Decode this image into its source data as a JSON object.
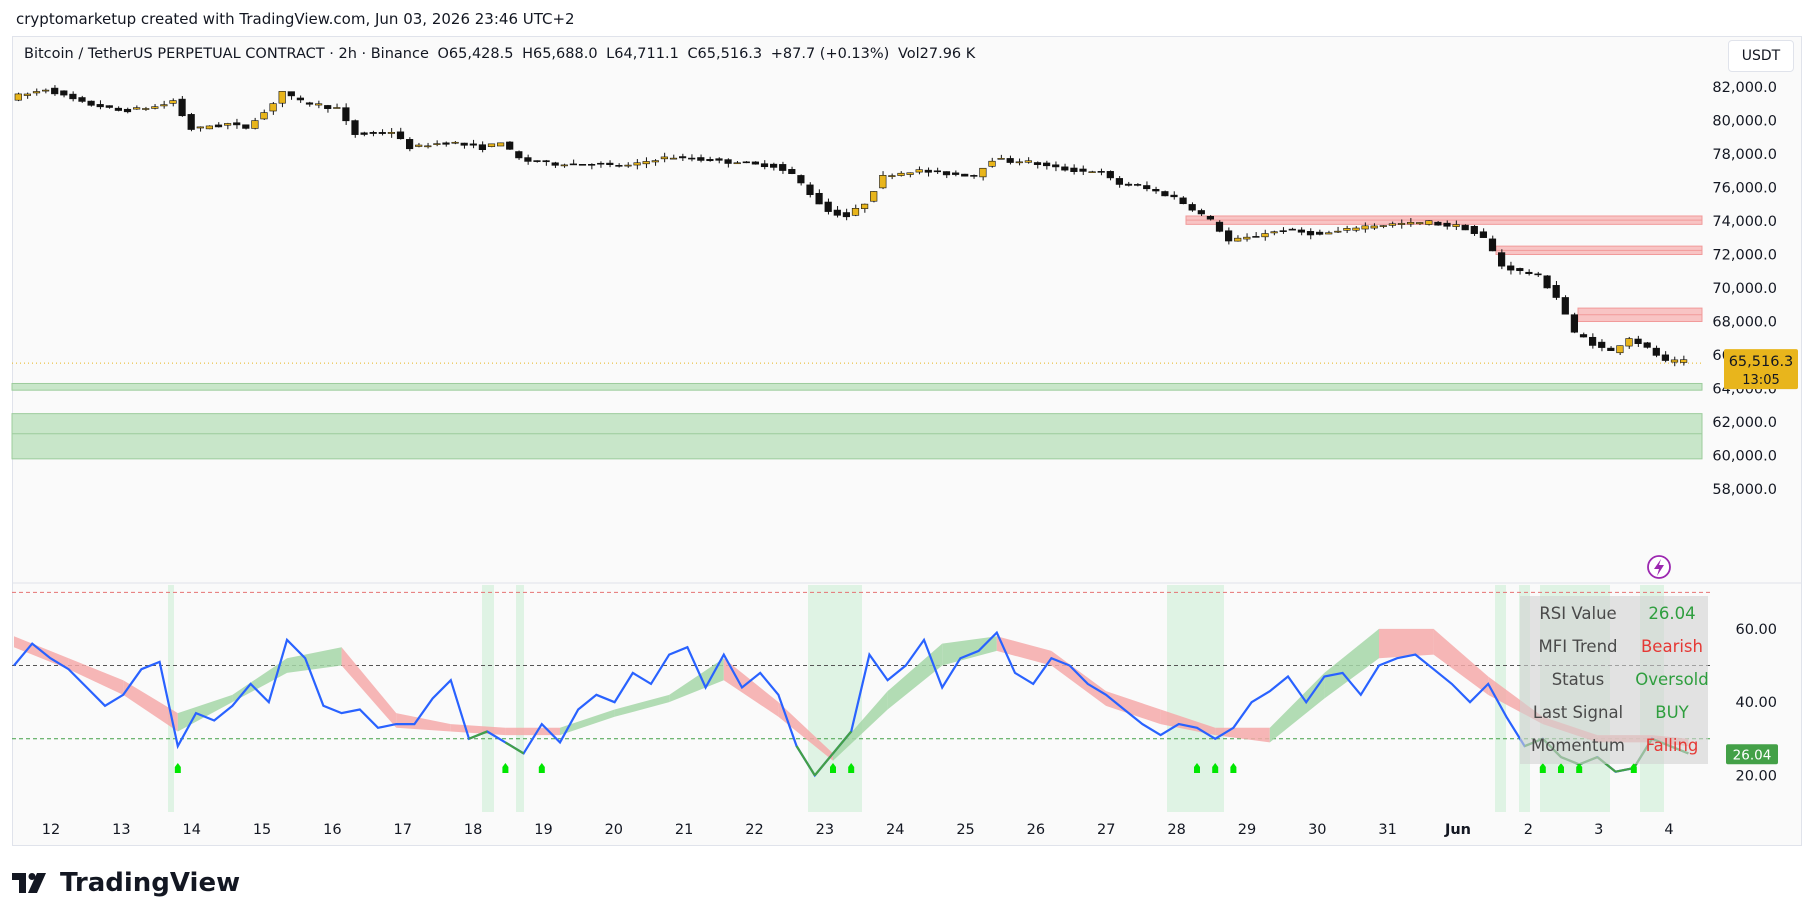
{
  "header": {
    "credit": "cryptomarketup created with TradingView.com, Jun 03, 2026 23:46 UTC+2"
  },
  "legend": {
    "symbol": "Bitcoin / TetherUS PERPETUAL CONTRACT · 2h · Binance",
    "open": "O65,428.5",
    "high": "H65,688.0",
    "low": "L64,711.1",
    "close": "C65,516.3",
    "change": "+87.7 (+0.13%)",
    "volume": "Vol27.96 K"
  },
  "currency_button": "USDT",
  "price_badge": {
    "price": "65,516.3",
    "countdown": "13:05",
    "color": "#e8b51c"
  },
  "rsi_badge": {
    "value": "26.04",
    "color": "#43a047"
  },
  "rsi_panel": {
    "rows": [
      {
        "label": "RSI Value",
        "value": "26.04",
        "color": "#2e9e3e"
      },
      {
        "label": "MFI Trend",
        "value": "Bearish",
        "color": "#e53935"
      },
      {
        "label": "Status",
        "value": "Oversold",
        "color": "#2e9e3e"
      },
      {
        "label": "Last Signal",
        "value": "BUY",
        "color": "#2e9e3e"
      },
      {
        "label": "Momentum",
        "value": "Falling",
        "color": "#e53935"
      }
    ]
  },
  "footer": {
    "brand": "TradingView"
  },
  "colors": {
    "bull": "#e8b51c",
    "bear": "#111111",
    "rsi_line": "#2962ff",
    "rsi_green": "#43a047",
    "supply_zone": "#f8c4c4",
    "demand_zone": "#c8e6c9"
  },
  "icons": {
    "tv_logo": "tradingview-logo-icon",
    "alert": "lightning-icon"
  },
  "chart_data": {
    "type": "candlestick",
    "price_axis": {
      "ticks": [
        "82,000.0",
        "80,000.0",
        "78,000.0",
        "76,000.0",
        "74,000.0",
        "72,000.0",
        "70,000.0",
        "68,000.0",
        "66,000.0",
        "64,000.0",
        "62,000.0",
        "60,000.0",
        "58,000.0"
      ],
      "range": [
        58000,
        83500
      ]
    },
    "x_ticks": [
      "12",
      "13",
      "14",
      "15",
      "16",
      "17",
      "18",
      "19",
      "20",
      "21",
      "22",
      "23",
      "24",
      "25",
      "26",
      "27",
      "28",
      "29",
      "30",
      "31",
      "Jun",
      "2",
      "3",
      "4"
    ],
    "price_path": [
      [
        0,
        81300
      ],
      [
        2,
        81900
      ],
      [
        4,
        81100
      ],
      [
        6,
        80600
      ],
      [
        8,
        80800
      ],
      [
        9,
        81200
      ],
      [
        10,
        79500
      ],
      [
        12,
        79800
      ],
      [
        13,
        79600
      ],
      [
        14,
        80500
      ],
      [
        15,
        81700
      ],
      [
        16,
        81100
      ],
      [
        18,
        80700
      ],
      [
        19,
        79200
      ],
      [
        21,
        79300
      ],
      [
        22,
        78400
      ],
      [
        24,
        78700
      ],
      [
        26,
        78400
      ],
      [
        27,
        78700
      ],
      [
        28,
        77700
      ],
      [
        30,
        77400
      ],
      [
        32,
        77400
      ],
      [
        34,
        77300
      ],
      [
        36,
        77800
      ],
      [
        38,
        77700
      ],
      [
        40,
        77500
      ],
      [
        42,
        77300
      ],
      [
        43,
        76800
      ],
      [
        44,
        75600
      ],
      [
        45,
        74600
      ],
      [
        46,
        74300
      ],
      [
        47,
        75100
      ],
      [
        48,
        76700
      ],
      [
        50,
        77000
      ],
      [
        52,
        76800
      ],
      [
        53,
        76700
      ],
      [
        54,
        77700
      ],
      [
        56,
        77500
      ],
      [
        58,
        77100
      ],
      [
        60,
        76900
      ],
      [
        61,
        76200
      ],
      [
        62,
        76100
      ],
      [
        64,
        75400
      ],
      [
        66,
        74000
      ],
      [
        67,
        72800
      ],
      [
        68,
        73000
      ],
      [
        70,
        73500
      ],
      [
        72,
        73200
      ],
      [
        74,
        73600
      ],
      [
        76,
        73800
      ],
      [
        78,
        73900
      ],
      [
        80,
        73600
      ],
      [
        81,
        73000
      ],
      [
        82,
        71300
      ],
      [
        84,
        70700
      ],
      [
        85,
        69500
      ],
      [
        86,
        67300
      ],
      [
        87,
        66700
      ],
      [
        88,
        66200
      ],
      [
        89,
        67000
      ],
      [
        90,
        66400
      ],
      [
        91,
        65600
      ]
    ],
    "supply_zones": [
      [
        73800,
        74300
      ],
      [
        72000,
        72500
      ],
      [
        68000,
        68800
      ]
    ],
    "demand_zones": [
      [
        63900,
        64300
      ],
      [
        59800,
        62500
      ]
    ],
    "current_price": 65516.3,
    "rsi": {
      "range": [
        10,
        72
      ],
      "levels": [
        70,
        50,
        30
      ],
      "ticks": [
        "60.00",
        "40.00",
        "20.00"
      ],
      "values": [
        [
          0,
          50
        ],
        [
          1,
          56
        ],
        [
          2,
          52
        ],
        [
          3,
          49
        ],
        [
          4,
          44
        ],
        [
          5,
          39
        ],
        [
          6,
          42
        ],
        [
          7,
          49
        ],
        [
          8,
          51
        ],
        [
          9,
          28
        ],
        [
          10,
          37
        ],
        [
          11,
          35
        ],
        [
          12,
          39
        ],
        [
          13,
          45
        ],
        [
          14,
          40
        ],
        [
          15,
          57
        ],
        [
          16,
          52
        ],
        [
          17,
          39
        ],
        [
          18,
          37
        ],
        [
          19,
          38
        ],
        [
          20,
          33
        ],
        [
          21,
          34
        ],
        [
          22,
          34
        ],
        [
          23,
          41
        ],
        [
          24,
          46
        ],
        [
          25,
          30
        ],
        [
          26,
          32
        ],
        [
          27,
          29
        ],
        [
          28,
          26
        ],
        [
          29,
          34
        ],
        [
          30,
          29
        ],
        [
          31,
          38
        ],
        [
          32,
          42
        ],
        [
          33,
          40
        ],
        [
          34,
          48
        ],
        [
          35,
          45
        ],
        [
          36,
          53
        ],
        [
          37,
          55
        ],
        [
          38,
          44
        ],
        [
          39,
          53
        ],
        [
          40,
          44
        ],
        [
          41,
          48
        ],
        [
          42,
          42
        ],
        [
          43,
          28
        ],
        [
          44,
          20
        ],
        [
          45,
          26
        ],
        [
          46,
          32
        ],
        [
          47,
          53
        ],
        [
          48,
          46
        ],
        [
          49,
          50
        ],
        [
          50,
          57
        ],
        [
          51,
          44
        ],
        [
          52,
          52
        ],
        [
          53,
          54
        ],
        [
          54,
          59
        ],
        [
          55,
          48
        ],
        [
          56,
          45
        ],
        [
          57,
          52
        ],
        [
          58,
          50
        ],
        [
          59,
          45
        ],
        [
          60,
          42
        ],
        [
          61,
          38
        ],
        [
          62,
          34
        ],
        [
          63,
          31
        ],
        [
          64,
          34
        ],
        [
          65,
          33
        ],
        [
          66,
          30
        ],
        [
          67,
          33
        ],
        [
          68,
          40
        ],
        [
          69,
          43
        ],
        [
          70,
          47
        ],
        [
          71,
          40
        ],
        [
          72,
          47
        ],
        [
          73,
          48
        ],
        [
          74,
          42
        ],
        [
          75,
          50
        ],
        [
          76,
          52
        ],
        [
          77,
          53
        ],
        [
          78,
          49
        ],
        [
          79,
          45
        ],
        [
          80,
          40
        ],
        [
          81,
          45
        ],
        [
          82,
          36
        ],
        [
          83,
          28
        ],
        [
          84,
          30
        ],
        [
          85,
          25
        ],
        [
          86,
          23
        ],
        [
          87,
          25
        ],
        [
          88,
          21
        ],
        [
          89,
          22
        ],
        [
          90,
          30
        ],
        [
          91,
          28
        ],
        [
          92,
          26
        ]
      ],
      "mfi_band": [
        [
          0,
          58,
          55
        ],
        [
          3,
          52,
          49
        ],
        [
          6,
          46,
          42
        ],
        [
          9,
          37,
          32
        ],
        [
          12,
          42,
          40
        ],
        [
          15,
          52,
          48
        ],
        [
          18,
          55,
          50
        ],
        [
          21,
          37,
          33
        ],
        [
          24,
          34,
          32
        ],
        [
          27,
          33,
          31
        ],
        [
          30,
          33,
          31
        ],
        [
          33,
          38,
          36
        ],
        [
          36,
          42,
          40
        ],
        [
          39,
          52,
          46
        ],
        [
          42,
          40,
          36
        ],
        [
          45,
          26,
          24
        ],
        [
          48,
          43,
          38
        ],
        [
          51,
          56,
          50
        ],
        [
          54,
          58,
          54
        ],
        [
          57,
          54,
          50
        ],
        [
          60,
          43,
          39
        ],
        [
          63,
          38,
          34
        ],
        [
          66,
          33,
          31
        ],
        [
          69,
          33,
          29
        ],
        [
          72,
          48,
          41
        ],
        [
          75,
          60,
          52
        ],
        [
          78,
          60,
          53
        ],
        [
          81,
          47,
          42
        ],
        [
          84,
          36,
          34
        ],
        [
          87,
          31,
          29
        ],
        [
          90,
          31,
          29
        ],
        [
          92,
          30,
          28
        ]
      ],
      "signal_points": [
        9,
        27,
        29,
        45,
        46,
        65,
        66,
        67,
        84,
        85,
        86,
        89
      ]
    }
  }
}
